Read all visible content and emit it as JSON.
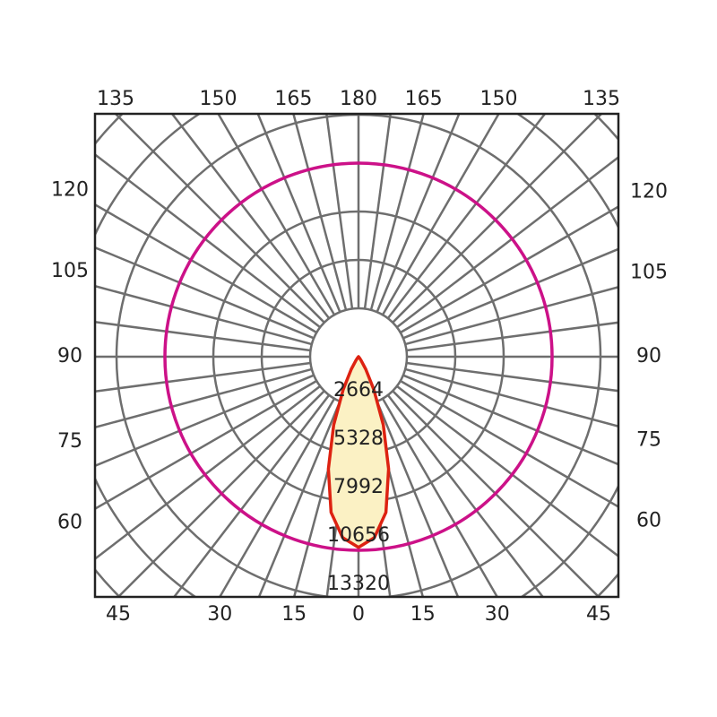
{
  "chart_data": {
    "type": "polar",
    "rlim": [
      0,
      13320
    ],
    "rticks": [
      2664,
      5328,
      7992,
      10656,
      13320
    ],
    "angle_grid_step": 7.5,
    "angle_ticks": [
      {
        "value": -45,
        "label": "45"
      },
      {
        "value": -30,
        "label": "30"
      },
      {
        "value": -15,
        "label": "15"
      },
      0,
      15,
      30,
      45,
      60,
      75,
      90,
      105,
      120,
      {
        "value": -60,
        "label": "60"
      },
      {
        "value": -75,
        "label": "75"
      },
      {
        "value": -90,
        "label": "90"
      },
      {
        "value": -105,
        "label": "105"
      },
      {
        "value": -120,
        "label": "120"
      },
      {
        "value": -135,
        "label": "135"
      },
      {
        "value": -150,
        "label": "150"
      },
      {
        "value": -165,
        "label": "165"
      },
      180,
      165,
      150,
      135
    ],
    "series": [
      {
        "shape": "curve",
        "color": "#dd2211",
        "fill": "#fbf1c4",
        "x": [
          -45,
          -40,
          -35,
          -30,
          -25,
          -20,
          -15,
          -10,
          -5,
          0,
          5,
          10,
          15,
          20,
          25,
          30,
          35,
          40,
          45
        ],
        "values": [
          0,
          80,
          250,
          800,
          2000,
          4000,
          6400,
          8700,
          10000,
          10500,
          10000,
          8700,
          6400,
          4000,
          2000,
          800,
          250,
          80,
          0
        ]
      },
      {
        "shape": "circle",
        "color": "#cc1188",
        "values": [
          10656
        ]
      }
    ]
  }
}
